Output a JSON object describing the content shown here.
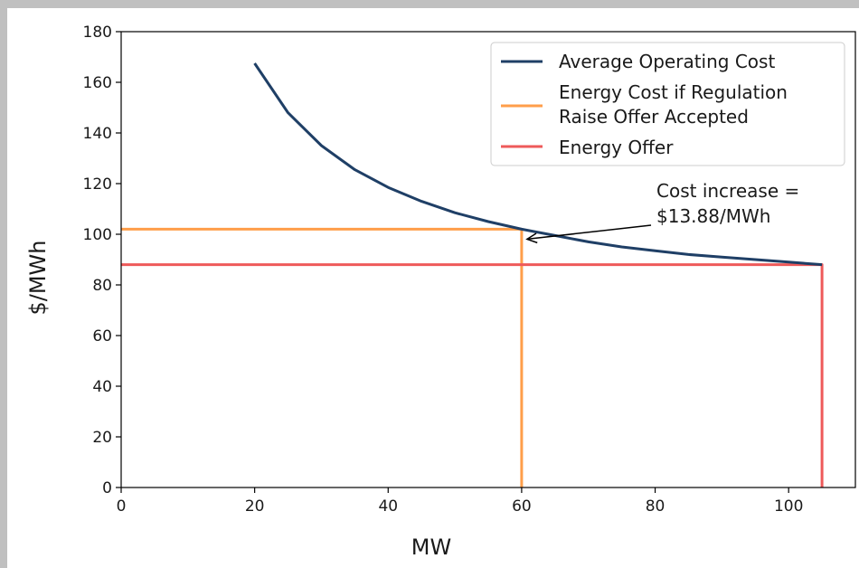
{
  "chart_data": {
    "type": "line",
    "xlabel": "MW",
    "ylabel": "$/MWh",
    "xlim": [
      0,
      110
    ],
    "ylim": [
      0,
      180
    ],
    "xticks": [
      0,
      20,
      40,
      60,
      80,
      100
    ],
    "yticks": [
      0,
      20,
      40,
      60,
      80,
      100,
      120,
      140,
      160,
      180
    ],
    "grid": false,
    "legend_position": "top-right",
    "series": [
      {
        "name": "Average Operating Cost",
        "color": "#1f3f66",
        "x": [
          20,
          25,
          30,
          35,
          40,
          45,
          50,
          55,
          60,
          65,
          70,
          75,
          80,
          85,
          90,
          95,
          100,
          105
        ],
        "y": [
          167.5,
          148,
          135,
          125.5,
          118.5,
          113,
          108.5,
          105,
          102,
          99.5,
          97,
          95,
          93.5,
          92,
          91,
          90,
          89,
          88
        ]
      },
      {
        "name": "Energy Cost if Regulation Raise Offer Accepted",
        "legend_lines": [
          "Energy Cost if Regulation",
          "Raise Offer Accepted"
        ],
        "color": "#ff9e4a",
        "x": [
          0,
          60,
          60
        ],
        "y": [
          102,
          102,
          0
        ]
      },
      {
        "name": "Energy Offer",
        "color": "#ee5a5a",
        "x": [
          0,
          105,
          105
        ],
        "y": [
          88,
          88,
          0
        ]
      }
    ],
    "annotation": {
      "text_lines": [
        "Cost increase =",
        "$13.88/MWh"
      ],
      "arrow_target": [
        60,
        97
      ]
    }
  }
}
